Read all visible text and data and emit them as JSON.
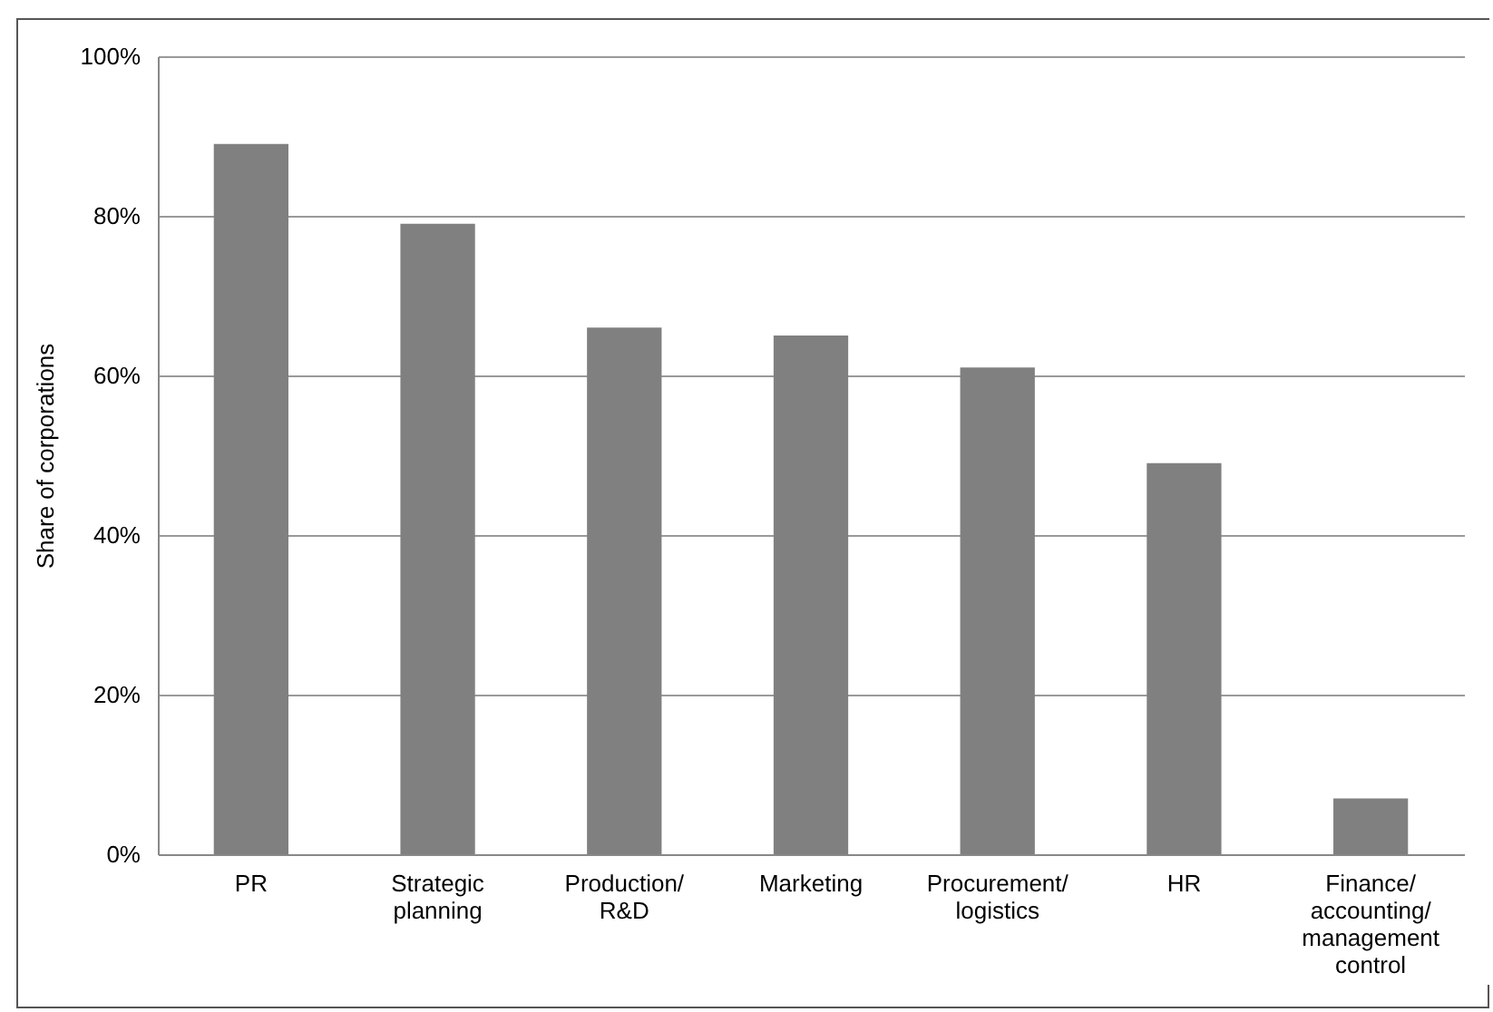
{
  "chart_data": {
    "type": "bar",
    "ylabel": "Share of corporations",
    "categories": [
      "PR",
      "Strategic planning",
      "Production/R&D",
      "Marketing",
      "Procurement/logistics",
      "HR",
      "Finance/accounting/management control"
    ],
    "values": [
      89,
      79,
      66,
      65,
      61,
      49,
      7
    ],
    "color": "#808080",
    "ylim": [
      0,
      100
    ],
    "yticks": [
      {
        "value": 0,
        "label": "0%"
      },
      {
        "value": 20,
        "label": "20%"
      },
      {
        "value": 40,
        "label": "40%"
      },
      {
        "value": 60,
        "label": "60%"
      },
      {
        "value": 80,
        "label": "80%"
      },
      {
        "value": 100,
        "label": "100%"
      }
    ],
    "grid": "y"
  }
}
